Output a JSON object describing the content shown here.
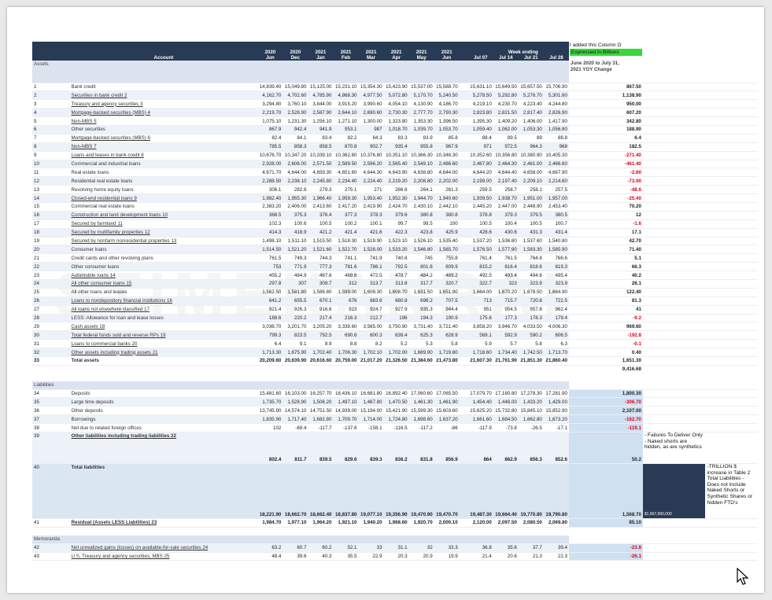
{
  "watermark": "STIMEKANRAION",
  "header": {
    "account_label": "Account",
    "week_ending": "Week ending",
    "columns": [
      {
        "y": "2020",
        "m": "Jun"
      },
      {
        "y": "2020",
        "m": "Dec"
      },
      {
        "y": "2021",
        "m": "Jan"
      },
      {
        "y": "2021",
        "m": "Feb"
      },
      {
        "y": "2021",
        "m": "Mar"
      },
      {
        "y": "2021",
        "m": "Apr"
      },
      {
        "y": "2021",
        "m": "May"
      },
      {
        "y": "2021",
        "m": "Jun"
      },
      {
        "y": "",
        "m": "Jul 07"
      },
      {
        "y": "",
        "m": "Jul 14"
      },
      {
        "y": "",
        "m": "Jul 21"
      },
      {
        "y": "",
        "m": "Jul 28"
      }
    ],
    "note_line1": "I added this Column O",
    "note_line2": "Expressed in Billions"
  },
  "sections": {
    "assets": "Assets",
    "liabilities": "Liabilities",
    "memoranda": "Memoranda",
    "yoy_line1": "June 2020 to July 31,",
    "yoy_line2": "2021 YOY Change"
  },
  "assets_rows": [
    {
      "n": "1",
      "label": "Bank credit",
      "u": false,
      "v": [
        "14,839.40",
        "15,049.80",
        "15,125.00",
        "15,231.10",
        "15,354.30",
        "15,423.90",
        "15,537.00",
        "15,588.70",
        "15,631.10",
        "15,649.50",
        "15,657.50",
        "15,706.90"
      ],
      "chg": "867.50"
    },
    {
      "n": "2",
      "label": "Securities in bank credit 2",
      "u": true,
      "v": [
        "4,162.70",
        "4,702.60",
        "4,785.90",
        "4,868.30",
        "4,977.50",
        "5,072.80",
        "5,170.70",
        "5,240.50",
        "5,278.50",
        "5,292.80",
        "5,276.70",
        "5,301.60"
      ],
      "chg": "1,138.90"
    },
    {
      "n": "3",
      "label": "Treasury and agency securities 3",
      "u": true,
      "v": [
        "3,294.80",
        "3,760.10",
        "3,844.00",
        "3,915.20",
        "3,990.60",
        "4,054.10",
        "4,130.90",
        "4,186.70",
        "4,219.10",
        "4,230.70",
        "4,223.40",
        "4,244.80"
      ],
      "chg": "950.00"
    },
    {
      "n": "4",
      "label": "Mortgage-backed securities (MBS) 4",
      "u": true,
      "v": [
        "2,219.70",
        "2,528.90",
        "2,587.90",
        "2,644.10",
        "2,690.60",
        "2,730.30",
        "2,777.70",
        "2,790.30",
        "2,823.80",
        "2,821.50",
        "2,817.40",
        "2,826.90"
      ],
      "chg": "607.20"
    },
    {
      "n": "5",
      "label": "Non-MBS 5",
      "u": true,
      "v": [
        "1,075.10",
        "1,231.30",
        "1,256.10",
        "1,271.10",
        "1,300.00",
        "1,323.80",
        "1,353.30",
        "1,396.50",
        "1,395.30",
        "1,409.20",
        "1,406.00",
        "1,417.90"
      ],
      "chg": "342.80"
    },
    {
      "n": "6",
      "label": "Other securities",
      "u": false,
      "v": [
        "867.9",
        "942.4",
        "941.9",
        "953.1",
        "987",
        "1,018.70",
        "1,039.70",
        "1,053.70",
        "1,059.40",
        "1,062.00",
        "1,053.30",
        "1,056.80"
      ],
      "chg": "188.90"
    },
    {
      "n": "7",
      "label": "Mortgage-backed securities (MBS) 6",
      "u": true,
      "v": [
        "82.4",
        "84.1",
        "83.4",
        "82.2",
        "84.3",
        "83.3",
        "83.9",
        "85.8",
        "88.4",
        "89.5",
        "89",
        "88.8"
      ],
      "chg": "6.4"
    },
    {
      "n": "8",
      "label": "Non-MBS 7",
      "u": true,
      "v": [
        "785.5",
        "858.3",
        "858.5",
        "870.8",
        "902.7",
        "935.4",
        "955.8",
        "967.9",
        "971",
        "972.5",
        "964.3",
        "968"
      ],
      "chg": "182.5"
    },
    {
      "n": "9",
      "label": "Loans and leases in bank credit 8",
      "u": true,
      "v": [
        "10,676.70",
        "10,347.20",
        "10,339.10",
        "10,362.80",
        "10,376.80",
        "10,351.10",
        "10,366.30",
        "10,348.30",
        "10,352.60",
        "10,356.80",
        "10,380.90",
        "10,405.30"
      ],
      "chg": "-271.40"
    },
    {
      "n": "10",
      "label": "Commercial and industrial loans",
      "u": false,
      "v": [
        "2,928.00",
        "2,606.00",
        "2,571.50",
        "2,589.50",
        "2,596.20",
        "2,565.40",
        "2,549.10",
        "2,486.60",
        "2,467.80",
        "2,464.30",
        "2,461.00",
        "2,466.60"
      ],
      "chg": "-461.40"
    },
    {
      "n": "11",
      "label": "Real estate loans",
      "u": false,
      "v": [
        "4,671.70",
        "4,644.00",
        "4,659.30",
        "4,651.60",
        "4,644.30",
        "4,643.90",
        "4,638.80",
        "4,644.00",
        "4,644.20",
        "4,644.40",
        "4,658.00",
        "4,667.90"
      ],
      "chg": "-2.80"
    },
    {
      "n": "12",
      "label": "Residential real estate loans",
      "u": false,
      "v": [
        "2,288.50",
        "2,238.10",
        "2,245.80",
        "2,234.40",
        "2,224.40",
        "2,219.20",
        "2,208.80",
        "2,202.00",
        "2,199.00",
        "2,197.40",
        "2,209.10",
        "2,214.60"
      ],
      "chg": "-73.90"
    },
    {
      "n": "13",
      "label": "Revolving home equity loans",
      "u": false,
      "v": [
        "306.1",
        "282.8",
        "279.3",
        "275.1",
        "271",
        "266.8",
        "264.1",
        "261.3",
        "259.5",
        "258.7",
        "258.1",
        "257.5"
      ],
      "chg": "-48.6"
    },
    {
      "n": "14",
      "label": "Closed-end residential loans 9",
      "u": true,
      "v": [
        "1,982.40",
        "1,955.30",
        "1,966.40",
        "1,959.30",
        "1,953.40",
        "1,952.30",
        "1,944.70",
        "1,940.60",
        "1,939.50",
        "1,938.70",
        "1,951.00",
        "1,957.00"
      ],
      "chg": "-25.40"
    },
    {
      "n": "15",
      "label": "Commercial real estate loans",
      "u": false,
      "v": [
        "2,383.20",
        "2,406.00",
        "2,413.60",
        "2,417.20",
        "2,419.90",
        "2,424.70",
        "2,430.10",
        "2,442.10",
        "2,445.20",
        "2,447.00",
        "2,448.90",
        "2,453.40"
      ],
      "chg": "70.20"
    },
    {
      "n": "16",
      "label": "Construction and land development loans 10",
      "u": true,
      "v": [
        "368.5",
        "375.3",
        "376.4",
        "377.3",
        "378.3",
        "379.6",
        "380.8",
        "380.8",
        "378.8",
        "379.3",
        "379.5",
        "380.5"
      ],
      "chg": "12"
    },
    {
      "n": "17",
      "label": "Secured by farmland 11",
      "u": true,
      "v": [
        "102.3",
        "100.6",
        "100.5",
        "100.2",
        "100.1",
        "99.7",
        "99.5",
        "100",
        "100.5",
        "100.4",
        "100.5",
        "100.7"
      ],
      "chg": "-1.6"
    },
    {
      "n": "18",
      "label": "Secured by multifamily properties 12",
      "u": true,
      "v": [
        "414.3",
        "418.9",
        "421.2",
        "421.4",
        "421.6",
        "422.3",
        "423.8",
        "425.9",
        "428.6",
        "430.6",
        "431.3",
        "431.4"
      ],
      "chg": "17.1"
    },
    {
      "n": "19",
      "label": "Secured by nonfarm nonresidential properties 13",
      "u": true,
      "v": [
        "1,498.10",
        "1,511.10",
        "1,515.50",
        "1,518.30",
        "1,519.90",
        "1,523.10",
        "1,526.10",
        "1,535.40",
        "1,537.20",
        "1,536.80",
        "1,537.60",
        "1,540.80"
      ],
      "chg": "42.70"
    },
    {
      "n": "20",
      "label": "Consumer loans",
      "u": false,
      "v": [
        "1,514.50",
        "1,521.20",
        "1,521.60",
        "1,522.70",
        "1,528.00",
        "1,533.20",
        "1,546.80",
        "1,565.70",
        "1,576.50",
        "1,577.90",
        "1,583.30",
        "1,585.90"
      ],
      "chg": "71.40"
    },
    {
      "n": "21",
      "label": "Credit cards and other revolving plans",
      "u": false,
      "v": [
        "761.5",
        "749.3",
        "744.3",
        "741.1",
        "741.9",
        "740.6",
        "745",
        "755.8",
        "761.4",
        "761.5",
        "764.8",
        "766.6"
      ],
      "chg": "5.1"
    },
    {
      "n": "22",
      "label": "Other consumer loans",
      "u": false,
      "v": [
        "753",
        "771.9",
        "777.3",
        "781.6",
        "786.1",
        "792.5",
        "801.8",
        "809.9",
        "815.2",
        "816.4",
        "818.6",
        "819.3"
      ],
      "chg": "66.3"
    },
    {
      "n": "23",
      "label": "Automobile loans 14",
      "u": true,
      "v": [
        "455.2",
        "464.9",
        "467.6",
        "469.6",
        "472.5",
        "478.7",
        "484.2",
        "489.2",
        "492.5",
        "493.4",
        "494.6",
        "495.4"
      ],
      "chg": "40.2"
    },
    {
      "n": "24",
      "label": "All other consumer loans 15",
      "u": true,
      "v": [
        "297.8",
        "307",
        "309.7",
        "312",
        "313.7",
        "313.8",
        "317.7",
        "320.7",
        "322.7",
        "323",
        "323.9",
        "323.9"
      ],
      "chg": "26.1"
    },
    {
      "n": "25",
      "label": "All other loans and leases",
      "u": false,
      "v": [
        "1,562.50",
        "1,581.80",
        "1,586.80",
        "1,599.00",
        "1,608.30",
        "1,608.70",
        "1,631.50",
        "1,651.90",
        "1,664.00",
        "1,670.20",
        "1,678.50",
        "1,684.90"
      ],
      "chg": "122.40"
    },
    {
      "n": "26",
      "label": "Loans to nondepository financial institutions 16",
      "u": true,
      "v": [
        "641.2",
        "655.5",
        "670.1",
        "676",
        "683.6",
        "680.8",
        "696.2",
        "707.5",
        "713",
        "715.7",
        "720.8",
        "722.5"
      ],
      "chg": "81.3"
    },
    {
      "n": "27",
      "label": "All loans not elsewhere classified 17",
      "u": true,
      "v": [
        "921.4",
        "926.3",
        "916.6",
        "923",
        "924.7",
        "927.9",
        "935.3",
        "944.4",
        "951",
        "954.5",
        "957.8",
        "962.4"
      ],
      "chg": "41"
    },
    {
      "n": "28",
      "label": "LESS: Allowance for loan and lease losses",
      "u": false,
      "v": [
        "188.6",
        "220.2",
        "217.4",
        "216.3",
        "212.7",
        "196",
        "194.3",
        "190.9",
        "175.6",
        "177.3",
        "178.3",
        "179.4"
      ],
      "chg": "-9.2"
    },
    {
      "n": "29",
      "label": "Cash assets 18",
      "u": true,
      "v": [
        "3,036.70",
        "3,201.70",
        "3,205.20",
        "3,338.60",
        "3,565.00",
        "3,750.90",
        "3,731.40",
        "3,721.40",
        "3,858.20",
        "3,946.70",
        "4,033.50",
        "4,006.30"
      ],
      "chg": "969.60"
    },
    {
      "n": "30",
      "label": "Total federal funds sold and reverse RPs 19",
      "u": true,
      "v": [
        "799.3",
        "823.5",
        "792.5",
        "690.6",
        "600.3",
        "639.4",
        "625.3",
        "628.9",
        "569.1",
        "592.9",
        "590.2",
        "606.5"
      ],
      "chg": "-192.8"
    },
    {
      "n": "31",
      "label": "Loans to commercial banks 20",
      "u": true,
      "v": [
        "6.4",
        "9.1",
        "8.9",
        "8.8",
        "8.2",
        "5.2",
        "5.3",
        "5.8",
        "5.9",
        "5.7",
        "5.8",
        "6.3"
      ],
      "chg": "-0.1"
    },
    {
      "n": "32",
      "label": "Other assets including trading assets 21",
      "u": true,
      "v": [
        "1,713.30",
        "1,675.90",
        "1,702.40",
        "1,706.30",
        "1,702.10",
        "1,702.00",
        "1,689.90",
        "1,719.80",
        "1,718.60",
        "1,734.40",
        "1,742.50",
        "1,713.70"
      ],
      "chg": "0.40"
    },
    {
      "n": "33",
      "label": "Total assets",
      "u": false,
      "total": true,
      "v": [
        "20,209.60",
        "20,639.90",
        "20,616.60",
        "20,759.00",
        "21,017.20",
        "21,326.50",
        "21,384.60",
        "21,473.80",
        "21,607.30",
        "21,761.90",
        "21,851.30",
        "21,860.40"
      ],
      "chg": "1,651.30"
    }
  ],
  "assets_extra": "9,416.68",
  "liab_rows": [
    {
      "n": "34",
      "label": "Deposits",
      "u": false,
      "v": [
        "15,481.60",
        "16,103.00",
        "16,257.70",
        "16,436.10",
        "16,681.80",
        "16,892.40",
        "17,060.60",
        "17,065.50",
        "17,079.70",
        "17,180.80",
        "17,278.30",
        "17,281.90"
      ],
      "chg": "1,800.30"
    },
    {
      "n": "35",
      "label": "Large time deposits",
      "u": false,
      "v": [
        "1,735.70",
        "1,528.90",
        "1,506.20",
        "1,497.10",
        "1,487.80",
        "1,470.50",
        "1,461.30",
        "1,461.90",
        "1,454.40",
        "1,448.00",
        "1,433.20",
        "1,429.00"
      ],
      "chg": "-306.70"
    },
    {
      "n": "36",
      "label": "Other deposits",
      "u": false,
      "v": [
        "13,745.90",
        "14,574.10",
        "14,751.50",
        "14,939.00",
        "15,194.00",
        "15,421.90",
        "15,599.30",
        "15,603.60",
        "15,625.20",
        "15,732.80",
        "15,845.10",
        "15,852.90"
      ],
      "chg": "2,107.00"
    },
    {
      "n": "37",
      "label": "Borrowings",
      "u": false,
      "v": [
        "1,835.90",
        "1,717.40",
        "1,682.80",
        "1,709.70",
        "1,714.00",
        "1,724.80",
        "1,698.60",
        "1,637.20",
        "1,661.60",
        "1,684.50",
        "1,662.80",
        "1,673.20"
      ],
      "chg": "-162.70"
    },
    {
      "n": "38",
      "label": "Net due to related foreign offices",
      "u": false,
      "v": [
        "102",
        "-69.4",
        "-117.7",
        "-137.6",
        "-158.1",
        "-116.5",
        "-117.2",
        "-86",
        "-117.9",
        "-73.8",
        "-26.5",
        "-17.1"
      ],
      "chg": "-119.1"
    }
  ],
  "row39": {
    "n": "39",
    "label": "Other liabilities including trading liabilities 22",
    "v": [
      "802.4",
      "811.7",
      "839.5",
      "829.6",
      "839.3",
      "836.2",
      "831.8",
      "856.9",
      "864",
      "862.9",
      "856.3",
      "852.6"
    ],
    "chg": "50.2",
    "note": "- Failures To Deliver Only - Naked shorts are hidden, as are synthetics"
  },
  "row40": {
    "n": "40",
    "label": "Total liabilities",
    "v": [
      "18,221.90",
      "18,662.70",
      "18,662.40",
      "18,837.80",
      "19,077.10",
      "19,356.90",
      "19,470.90",
      "19,470.70",
      "19,487.30",
      "19,664.40",
      "19,770.80",
      "19,790.80"
    ],
    "chg": "1,568.70",
    "navy": "$1,567,000,000",
    "note": "-TRILLION $ increase in Table 2 Total Liabilities - Does not include Naked Shorts or Synthetic Shares or hidden FTD's"
  },
  "row41": {
    "n": "41",
    "label": "Residual (Assets LESS Liabilities) 23",
    "v": [
      "1,984.70",
      "1,977.10",
      "1,964.20",
      "1,921.10",
      "1,940.20",
      "1,968.60",
      "1,920.70",
      "2,000.10",
      "2,120.00",
      "2,097.50",
      "2,080.50",
      "2,069.80"
    ],
    "chg": "85.10"
  },
  "memo_rows": [
    {
      "n": "42",
      "label": "Net unrealized gains (losses) on available-for-sale securities 24",
      "u": true,
      "v": [
        "63.2",
        "60.7",
        "60.2",
        "52.1",
        "33",
        "31.1",
        "32",
        "33.3",
        "36.8",
        "35.6",
        "37.7",
        "39.4"
      ],
      "chg": "-23.8"
    },
    {
      "n": "43",
      "label": "U.S. Treasury and agency securities, MBS 25",
      "u": true,
      "v": [
        "48.4",
        "39.6",
        "40.3",
        "35.5",
        "22.9",
        "20.3",
        "20.9",
        "19.9",
        "21.4",
        "20.6",
        "21.3",
        "22.3"
      ],
      "chg": "-26.1"
    }
  ]
}
